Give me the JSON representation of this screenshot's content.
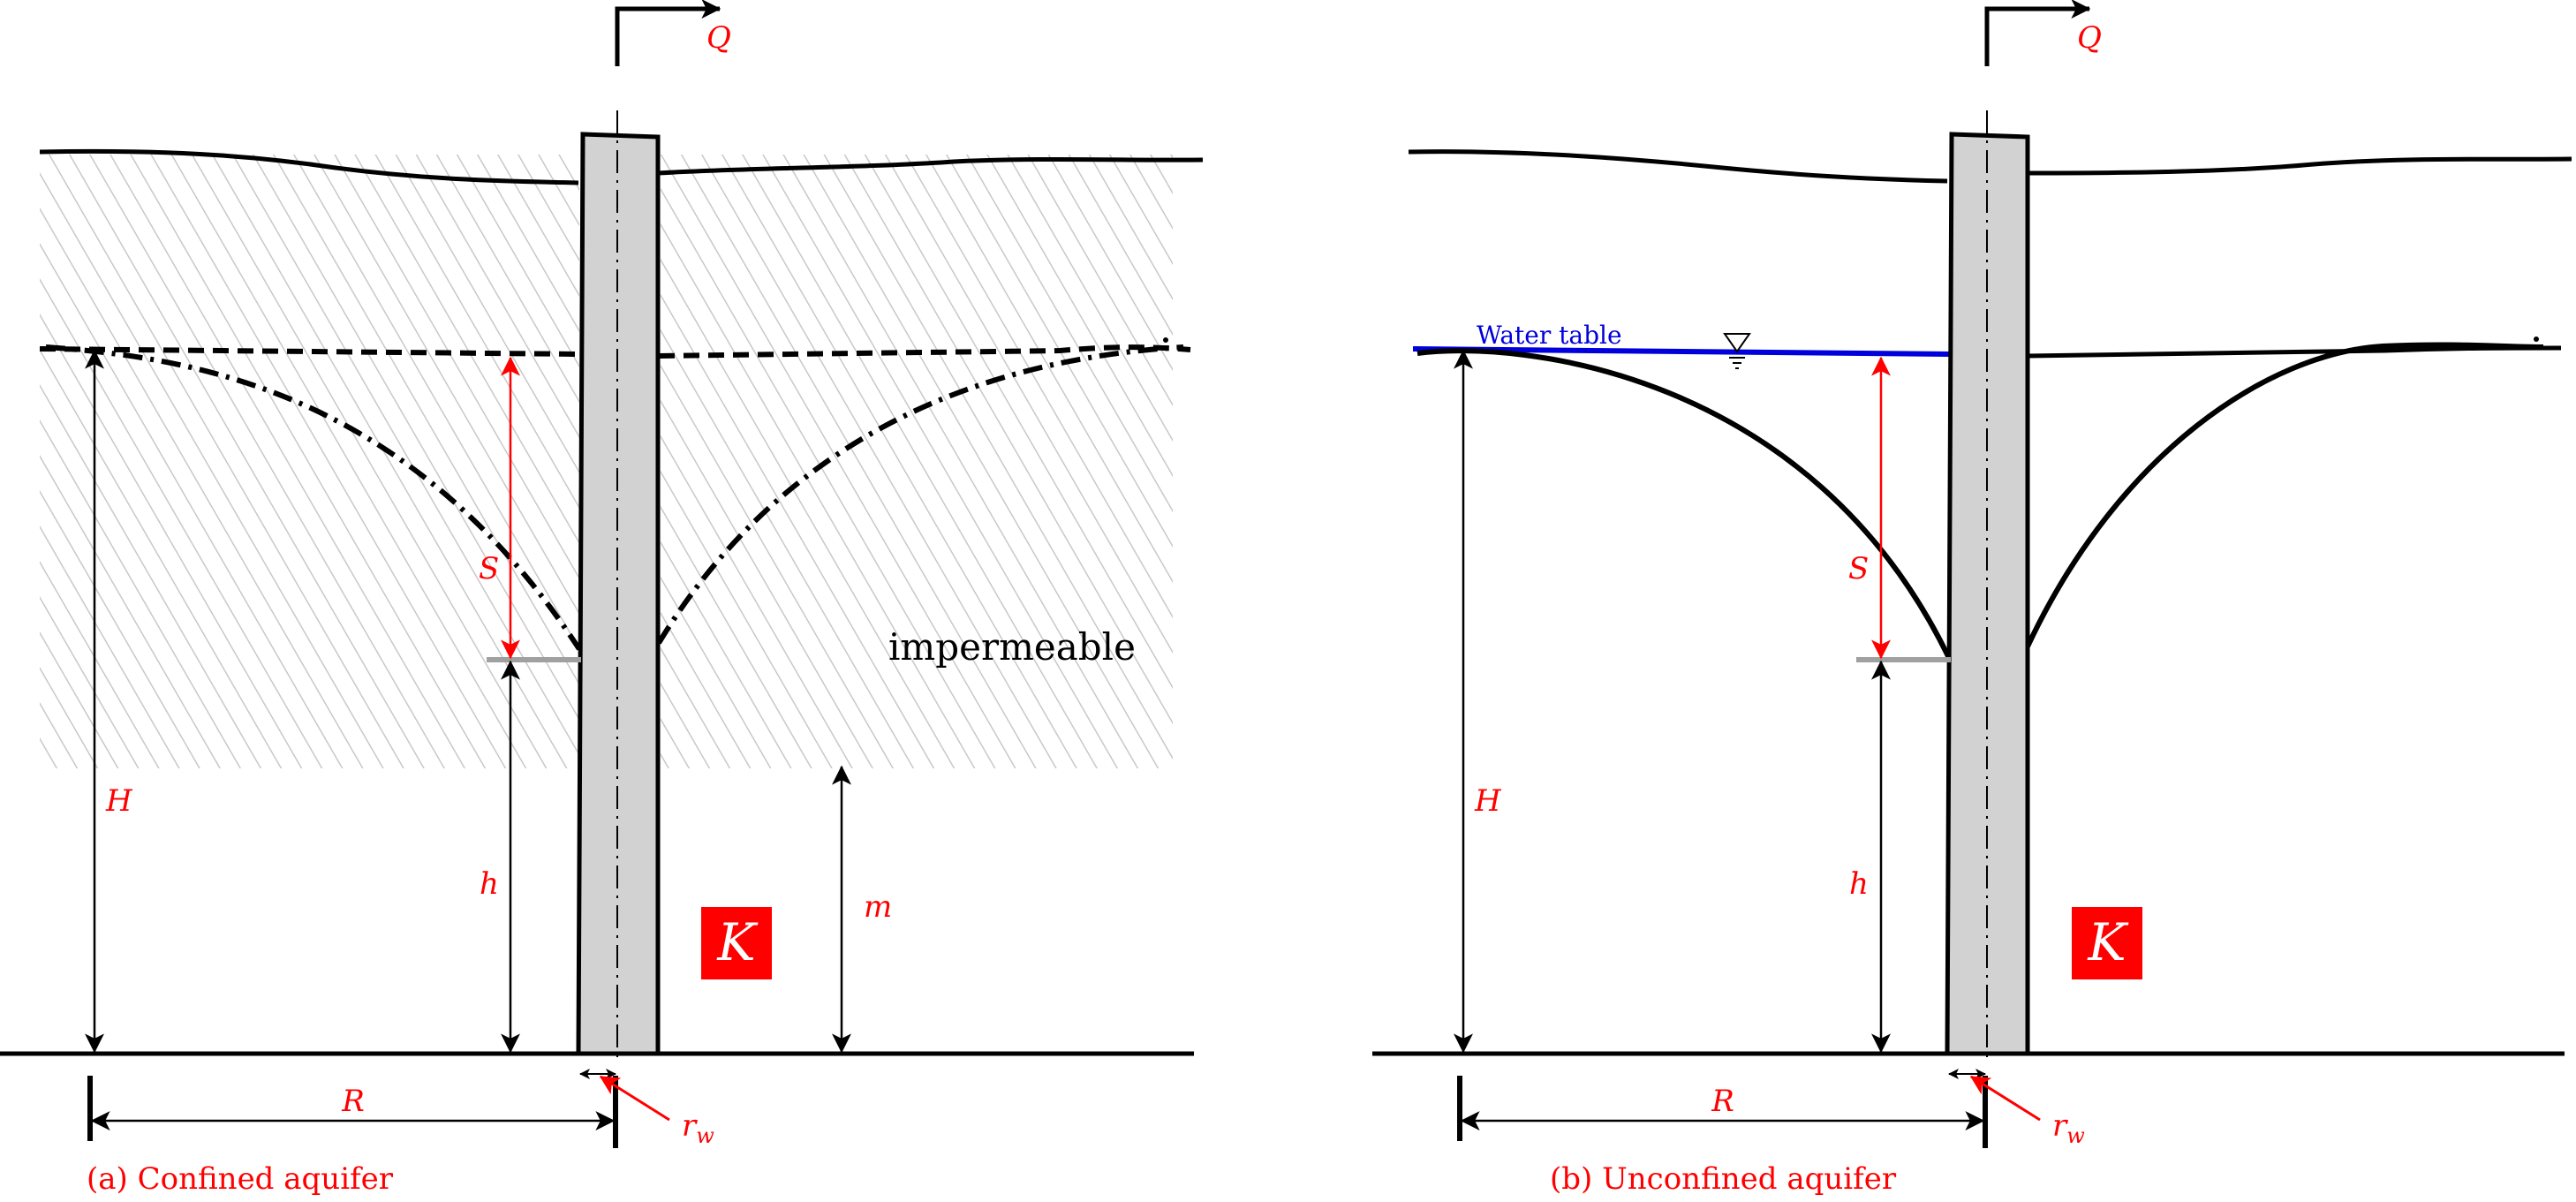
{
  "colors": {
    "ink": "#000000",
    "annotation": "#ff0000",
    "water": "#0000dd",
    "well_fill": "#d2d2d2",
    "hatch": "#c8c8c8",
    "screen_mark": "#a0a0a0"
  },
  "panel_a": {
    "caption": "(a) Confined aquifer",
    "Q": "Q",
    "S": "S",
    "H": "H",
    "h": "h",
    "m": "m",
    "R": "R",
    "rw": "r",
    "rw_sub": "w",
    "K": "K",
    "layer_label": "impermeable"
  },
  "panel_b": {
    "caption": "(b) Unconfined aquifer",
    "Q": "Q",
    "S": "S",
    "H": "H",
    "h": "h",
    "R": "R",
    "rw": "r",
    "rw_sub": "w",
    "K": "K",
    "water_table_label": "Water table"
  }
}
